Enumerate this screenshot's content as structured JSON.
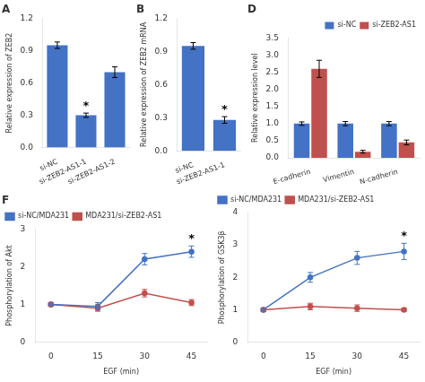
{
  "chart_data": [
    {
      "type": "bar",
      "title": "A",
      "categories": [
        "si-NC",
        "si-ZEB2-AS1-1",
        "si-ZEB2-AS1-2"
      ],
      "values": [
        0.95,
        0.3,
        0.7
      ],
      "errors": [
        0.03,
        0.02,
        0.05
      ],
      "color": "#4472C4",
      "ylabel": "Relative expression of ZEB2",
      "ylim": [
        0,
        1.2
      ],
      "yticks": [
        {
          "value": 0,
          "label": "0.0"
        },
        0.3,
        0.6,
        0.9,
        1.2
      ],
      "grid": false,
      "annotations": [
        {
          "category": "si-ZEB2-AS1-1",
          "text": "*"
        }
      ]
    },
    {
      "type": "bar",
      "title": "B",
      "categories": [
        "si-NC",
        "si-ZEB2-AS1-1"
      ],
      "values": [
        0.95,
        0.28
      ],
      "errors": [
        0.03,
        0.03
      ],
      "color": "#4472C4",
      "ylabel": "Relative expression of ZEB2 mRNA",
      "ylim": [
        0,
        1.2
      ],
      "yticks": [
        {
          "value": 0,
          "label": "0.0"
        },
        0.3,
        0.6,
        0.9,
        1.2
      ],
      "grid": false,
      "annotations": [
        {
          "category": "si-ZEB2-AS1-1",
          "text": "*"
        }
      ]
    },
    {
      "type": "bar",
      "title": "D",
      "categories": [
        "E-cadherin",
        "Vimentin",
        "N-cadherin"
      ],
      "series": [
        {
          "name": "si-NC",
          "color": "#4472C4",
          "values": [
            1.0,
            1.0,
            1.0
          ],
          "errors": [
            0.05,
            0.06,
            0.06
          ]
        },
        {
          "name": "si-ZEB2-AS1",
          "color": "#C0504D",
          "values": [
            2.6,
            0.18,
            0.45
          ],
          "errors": [
            0.25,
            0.04,
            0.07
          ]
        }
      ],
      "ylabel": "Relative expression level",
      "ylim": [
        0,
        3.5
      ],
      "yticks": [
        {
          "value": 0,
          "label": "0.0"
        },
        0.5,
        {
          "value": 1,
          "label": "1.0"
        },
        1.5,
        {
          "value": 2,
          "label": "2.0"
        },
        2.5,
        {
          "value": 3,
          "label": "3.0"
        },
        3.5
      ],
      "grid": false,
      "legend": "upper right"
    },
    {
      "type": "line",
      "title": "F",
      "x": [
        0,
        15,
        30,
        45
      ],
      "series": [
        {
          "name": "si-NC/MDA231",
          "color": "#4472C4",
          "marker": "circle",
          "values": [
            1.0,
            0.95,
            2.2,
            2.4
          ],
          "errors": [
            0.05,
            0.1,
            0.15,
            0.15
          ]
        },
        {
          "name": "MDA231/si-ZEB2-AS1",
          "color": "#C0504D",
          "marker": "circle",
          "values": [
            1.0,
            0.9,
            1.3,
            1.05
          ],
          "errors": [
            0.05,
            0.08,
            0.1,
            0.08
          ]
        }
      ],
      "xlabel": "EGF (min)",
      "ylabel": "Phosphorylation of Akt",
      "xlim": [
        -5,
        50
      ],
      "xticks": [
        0,
        15,
        30,
        45
      ],
      "ylim": [
        0,
        3
      ],
      "yticks": [
        0,
        1,
        2,
        3
      ],
      "grid": false,
      "legend": "upper left",
      "annotations": [
        {
          "x": 45,
          "series": "si-NC/MDA231",
          "text": "*"
        }
      ]
    },
    {
      "type": "line",
      "x": [
        0,
        15,
        30,
        45
      ],
      "series": [
        {
          "name": "si-NC/MDA231",
          "color": "#4472C4",
          "marker": "circle",
          "values": [
            1.0,
            2.0,
            2.6,
            2.8
          ],
          "errors": [
            0.05,
            0.15,
            0.2,
            0.25
          ]
        },
        {
          "name": "MDA231/si-ZEB2-AS1",
          "color": "#C0504D",
          "marker": "circle",
          "values": [
            1.0,
            1.1,
            1.05,
            1.0
          ],
          "errors": [
            0.05,
            0.1,
            0.1,
            0.05
          ]
        }
      ],
      "xlabel": "EGF (min)",
      "ylabel": "Phosphorylation of GSK3β",
      "xlim": [
        -5,
        50
      ],
      "xticks": [
        0,
        15,
        30,
        45
      ],
      "ylim": [
        0,
        4
      ],
      "yticks": [
        0,
        1,
        2,
        3,
        4
      ],
      "grid": false,
      "legend": "upper left",
      "annotations": [
        {
          "x": 45,
          "series": "si-NC/MDA231",
          "text": "*"
        }
      ]
    }
  ]
}
